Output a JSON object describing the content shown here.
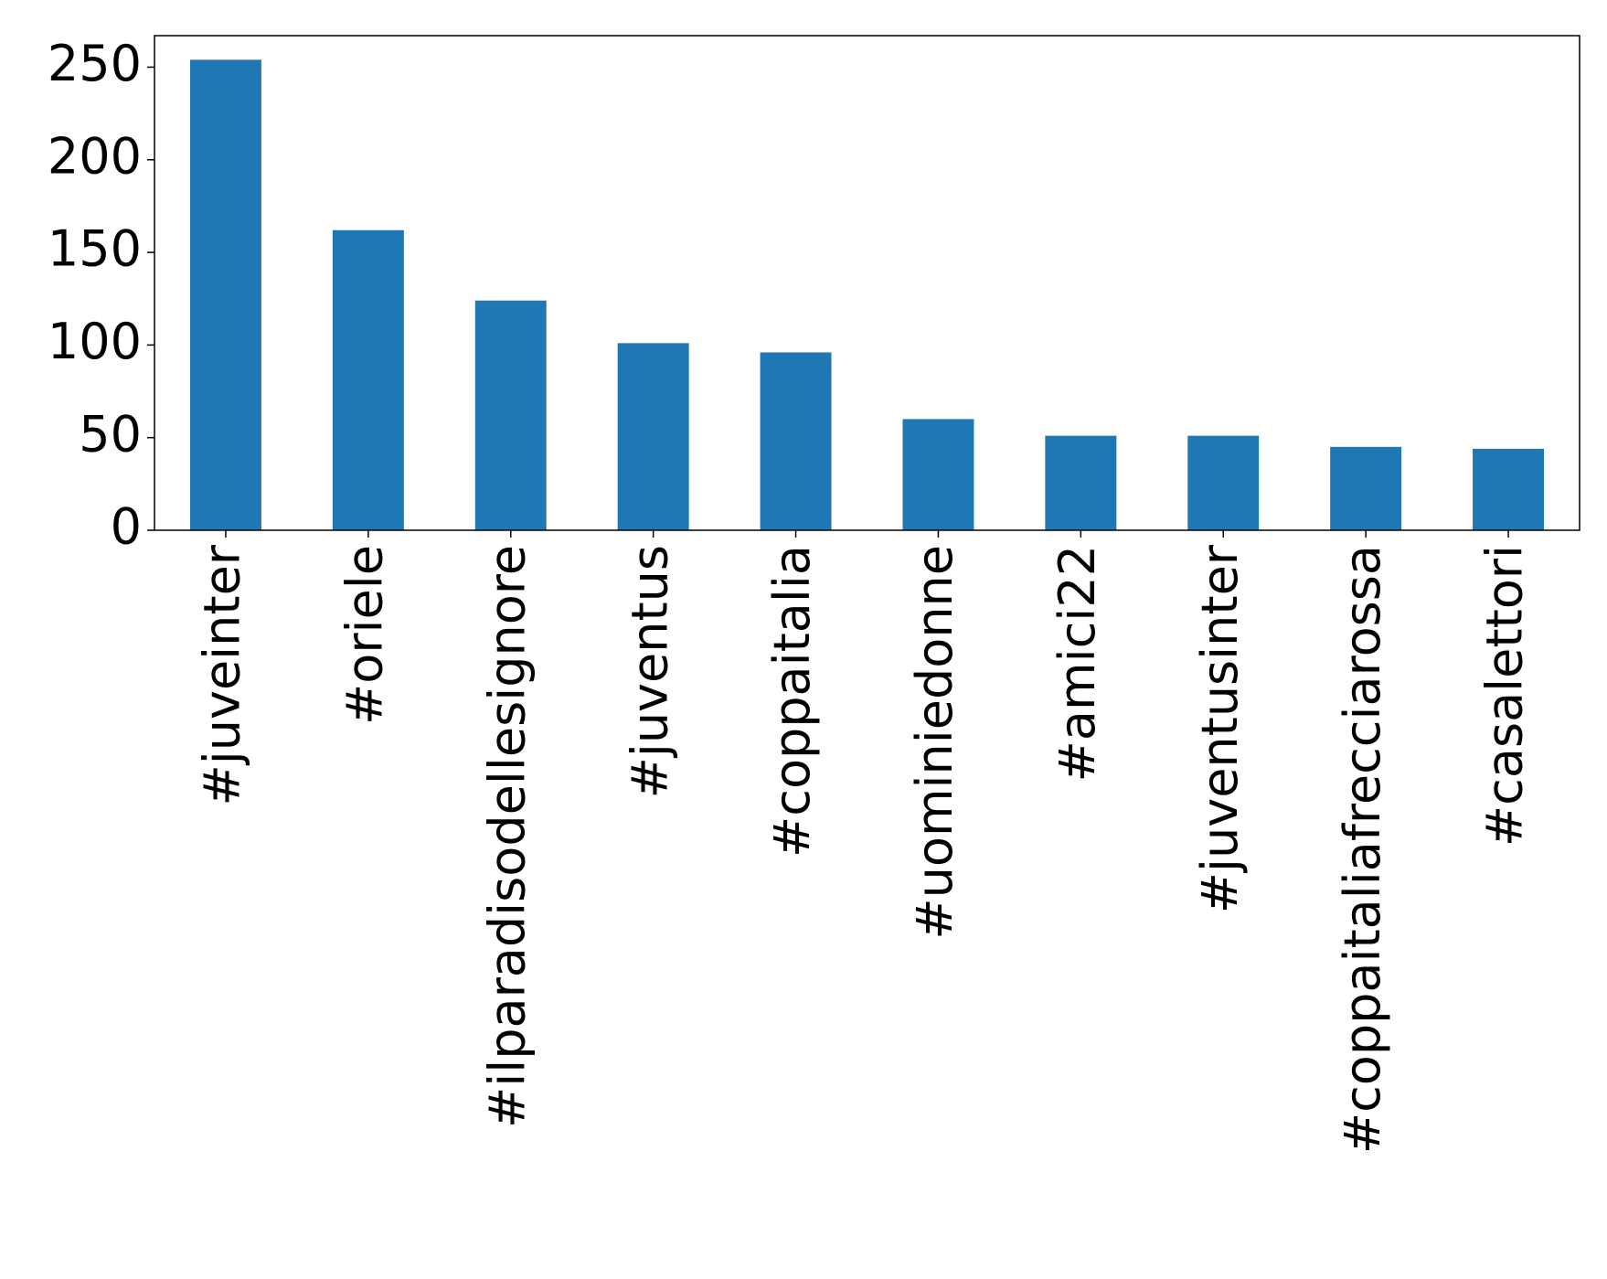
{
  "chart_data": {
    "type": "bar",
    "categories": [
      "#juveinter",
      "#oriele",
      "#ilparadisodellesignore",
      "#juventus",
      "#coppaitalia",
      "#uominiedonne",
      "#amici22",
      "#juventusinter",
      "#coppaitaliafrecciarossa",
      "#casalettori"
    ],
    "values": [
      254,
      162,
      124,
      101,
      96,
      60,
      51,
      51,
      45,
      44
    ],
    "color": "#1f77b4",
    "ylim": [
      0,
      267
    ],
    "yticks": [
      0,
      50,
      100,
      150,
      200,
      250
    ],
    "grid": false
  }
}
